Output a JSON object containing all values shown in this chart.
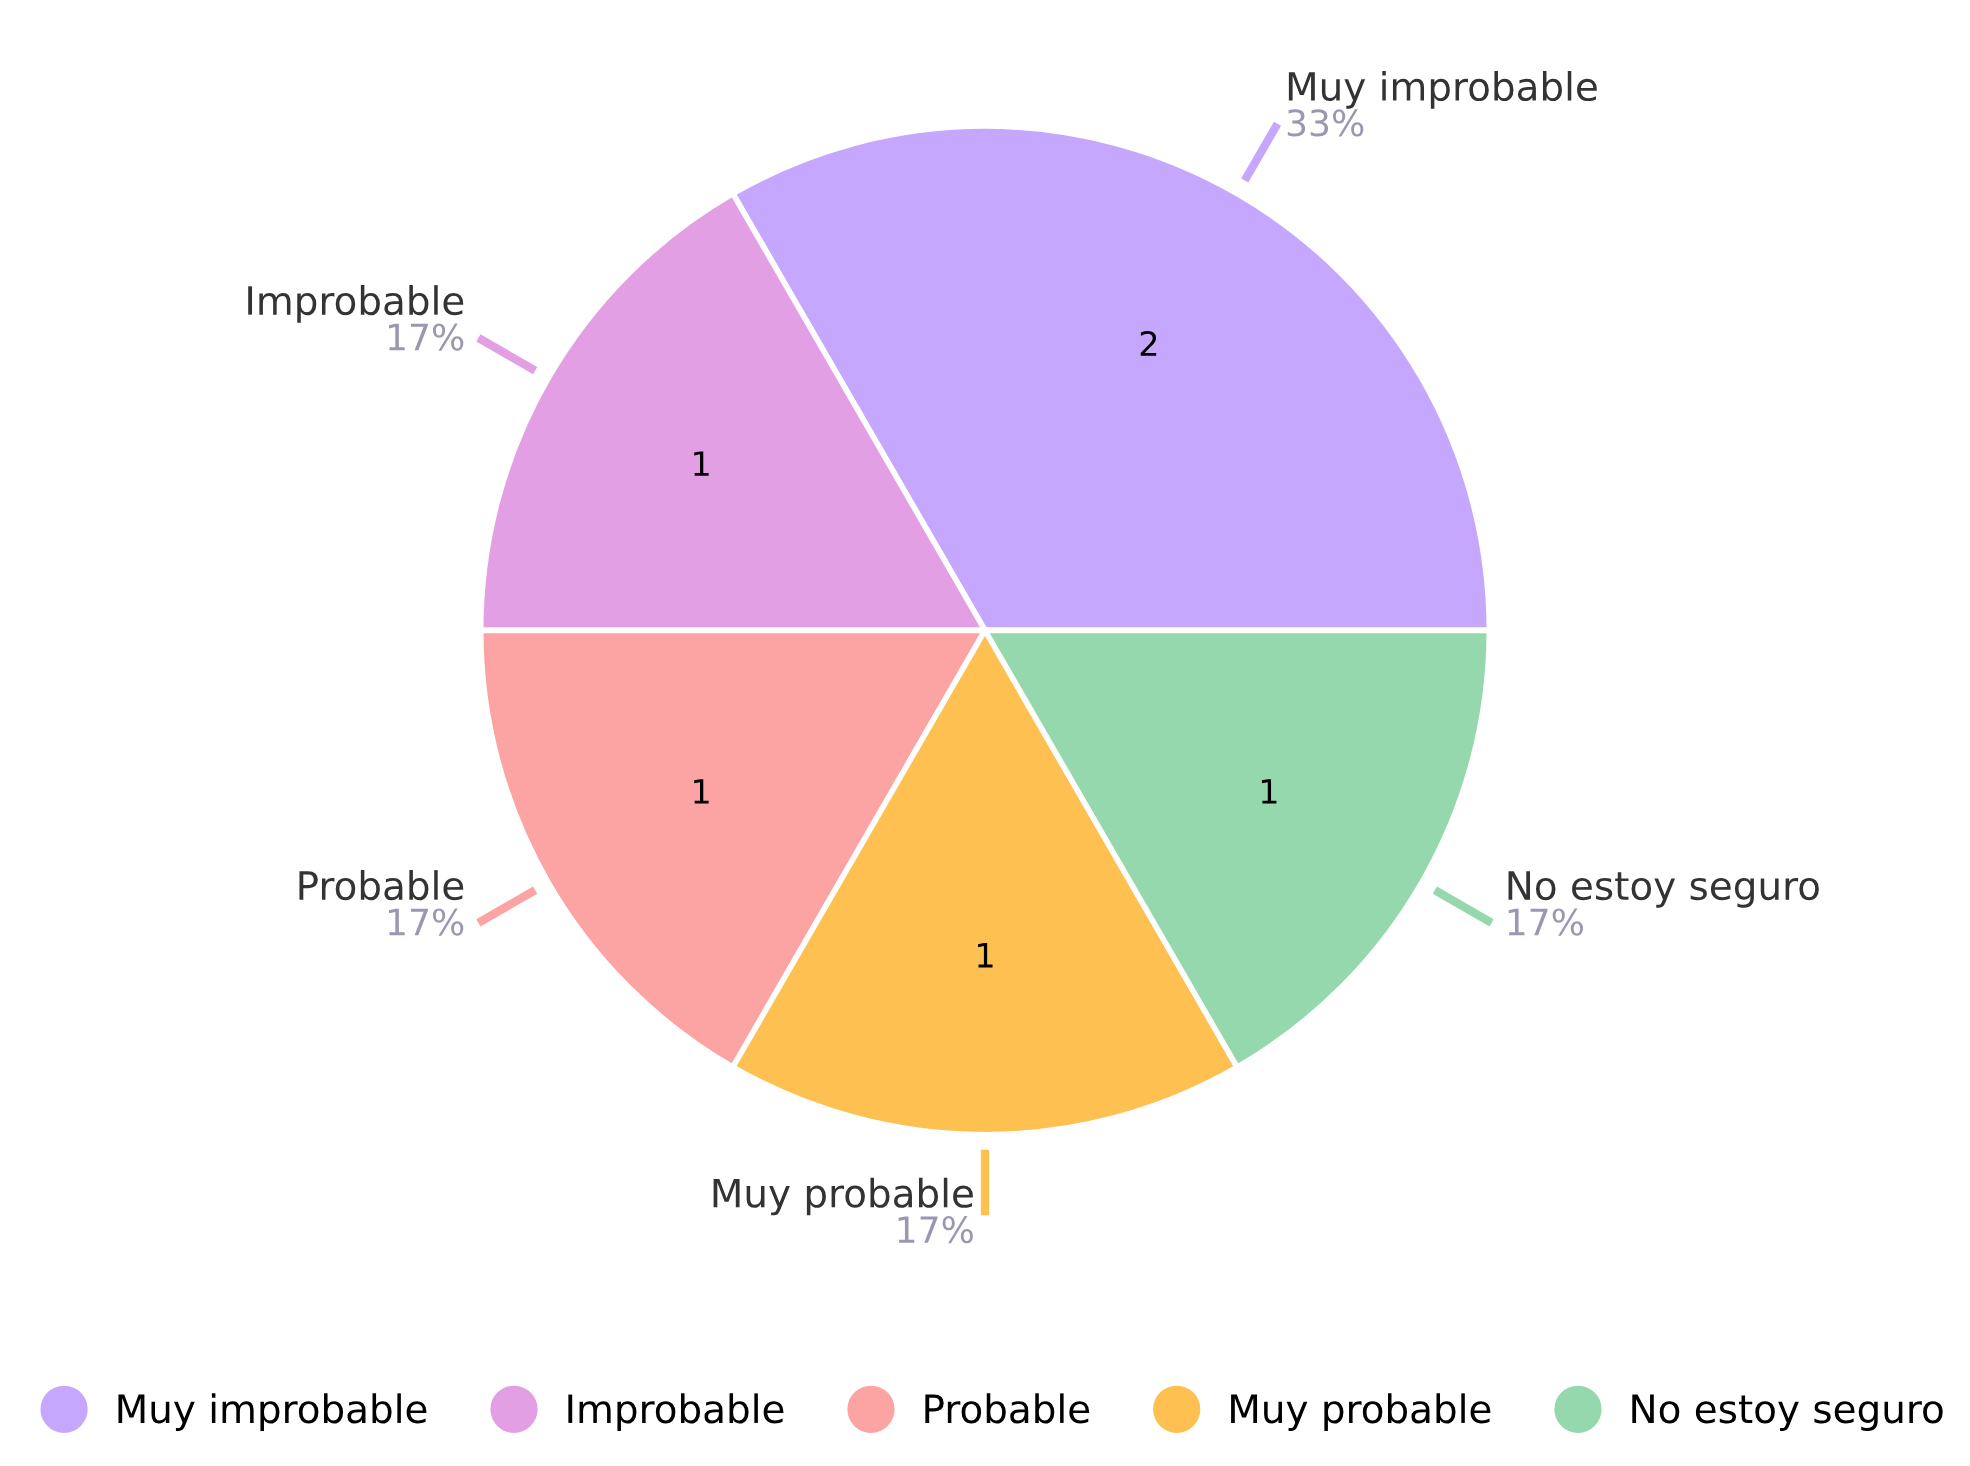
{
  "chart_data": {
    "type": "pie",
    "categories": [
      "Muy improbable",
      "Improbable",
      "Probable",
      "Muy probable",
      "No estoy seguro"
    ],
    "values": [
      2,
      1,
      1,
      1,
      1
    ],
    "colors": [
      "#c5a8fd",
      "#e39fe3",
      "#fca3a3",
      "#fec151",
      "#95d8ad"
    ],
    "data_labels": true,
    "annotations": [
      "33%",
      "17%",
      "17%",
      "17%",
      "17%"
    ],
    "legend": "bottom"
  }
}
